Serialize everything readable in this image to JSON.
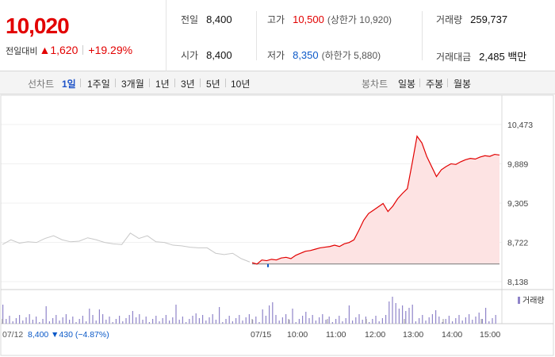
{
  "summary": {
    "price": "10,020",
    "change_label": "전일대비",
    "change_arrow": "▲",
    "change_value": "1,620",
    "change_pct": "+19.29%"
  },
  "stats": {
    "prev_close": {
      "label": "전일",
      "value": "8,400"
    },
    "open": {
      "label": "시가",
      "value": "8,400"
    },
    "high": {
      "label": "고가",
      "value": "10,500",
      "extra": "(상한가 10,920)"
    },
    "low": {
      "label": "저가",
      "value": "8,350",
      "extra": "(하한가 5,880)"
    },
    "volume": {
      "label": "거래량",
      "value": "259,737"
    },
    "amount": {
      "label": "거래대금",
      "value": "2,485 백만"
    }
  },
  "toolbar": {
    "line_label": "선차트",
    "line_periods": [
      "1일",
      "1주일",
      "3개월",
      "1년",
      "3년",
      "5년",
      "10년"
    ],
    "active_period": "1일",
    "candle_label": "봉차트",
    "candle_periods": [
      "일봉",
      "주봉",
      "월봉"
    ]
  },
  "colors": {
    "up": "#e20000",
    "down": "#0b59c8",
    "prev_line": "#c8c8c8",
    "area_fill": "#fde3e3",
    "volume_bar": "#8f84c9"
  },
  "chart_data": {
    "type": "area",
    "y_ticks": [
      "10,473",
      "9,889",
      "9,305",
      "8,722",
      "8,138"
    ],
    "ylim": [
      8138,
      10473
    ],
    "x_ticks": [
      "07/12",
      "07/15",
      "10:00",
      "11:00",
      "12:00",
      "13:00",
      "14:00",
      "15:00"
    ],
    "prev_close": 8400,
    "prev_day_series": [
      8690,
      8760,
      8710,
      8730,
      8720,
      8780,
      8820,
      8760,
      8730,
      8740,
      8790,
      8760,
      8720,
      8700,
      8690,
      8860,
      8780,
      8820,
      8730,
      8720,
      8680,
      8670,
      8650,
      8640,
      8640,
      8560,
      8540,
      8560,
      8480,
      8430
    ],
    "today_series": [
      8420,
      8400,
      8460,
      8450,
      8470,
      8460,
      8490,
      8500,
      8480,
      8530,
      8560,
      8590,
      8600,
      8620,
      8640,
      8650,
      8660,
      8680,
      8660,
      8700,
      8720,
      8760,
      8900,
      9050,
      9150,
      9200,
      9250,
      9300,
      9180,
      9260,
      9370,
      9450,
      9520,
      9900,
      10300,
      10200,
      10000,
      9850,
      9700,
      9800,
      9850,
      9890,
      9880,
      9920,
      9950,
      9970,
      9960,
      9990,
      10010,
      10000,
      10030,
      10020
    ],
    "volume_label": "거래량",
    "footer_prev_date": "07/12",
    "footer_prev_close": "8,400",
    "footer_prev_change": "▼430 (−4.87%)"
  }
}
